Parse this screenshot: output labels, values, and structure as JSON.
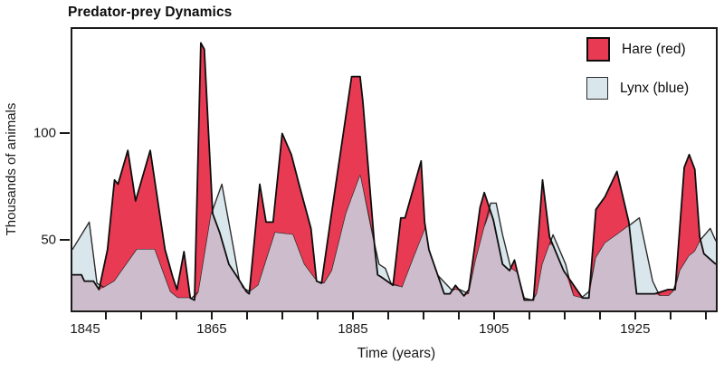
{
  "title": "Predator-prey Dynamics",
  "legend": {
    "hare_label": "Hare (red)",
    "lynx_label": "Lynx (blue)"
  },
  "axes": {
    "x_label": "Time (years)",
    "y_label": "Thousands of animals"
  },
  "colors": {
    "hare_fill": "#e83a52",
    "lynx_fill": "#d9e7ec",
    "overlap_fill": "#cdbccb",
    "hare_stroke": "#0d0d0d",
    "lynx_stroke": "#2b2b2b",
    "frame": "#1a1a1a"
  },
  "chart_data": {
    "type": "area",
    "title": "Predator-prey Dynamics",
    "xlabel": "Time (years)",
    "ylabel": "Thousands of animals",
    "x_window": [
      1845,
      1936.7
    ],
    "y_window": [
      16.1,
      149.6
    ],
    "x_tick_labels": [
      1845,
      1865,
      1885,
      1905,
      1925
    ],
    "x_minor_tick_interval": 5,
    "y_tick_labels": [
      50,
      100
    ],
    "grid": false,
    "legend_position": "top-right",
    "overlap_note": "Overlapping region of the two area series renders in mauve",
    "series": [
      {
        "name": "Hare (red)",
        "color": "#e83a52",
        "points": [
          [
            1845,
            33
          ],
          [
            1846.3,
            33
          ],
          [
            1846.7,
            30
          ],
          [
            1848,
            30
          ],
          [
            1848.8,
            26
          ],
          [
            1850,
            45
          ],
          [
            1851,
            78
          ],
          [
            1851.5,
            76
          ],
          [
            1852.9,
            92
          ],
          [
            1854,
            68
          ],
          [
            1856.1,
            92
          ],
          [
            1858.2,
            45
          ],
          [
            1859.3,
            32
          ],
          [
            1859.9,
            26
          ],
          [
            1860.9,
            44
          ],
          [
            1861.8,
            22
          ],
          [
            1862.4,
            21
          ],
          [
            1863.3,
            143
          ],
          [
            1863.8,
            140
          ],
          [
            1864.4,
            100
          ],
          [
            1865,
            62
          ],
          [
            1866,
            53
          ],
          [
            1867.3,
            38
          ],
          [
            1868.5,
            32
          ],
          [
            1869.8,
            25
          ],
          [
            1870.2,
            24
          ],
          [
            1871.7,
            76
          ],
          [
            1872.6,
            58
          ],
          [
            1873.6,
            58
          ],
          [
            1874.9,
            100
          ],
          [
            1876.2,
            90
          ],
          [
            1877.3,
            76
          ],
          [
            1879,
            55
          ],
          [
            1879.8,
            30
          ],
          [
            1880.5,
            29
          ],
          [
            1881.7,
            57
          ],
          [
            1884.8,
            127
          ],
          [
            1886,
            127
          ],
          [
            1886.4,
            115
          ],
          [
            1888.1,
            45
          ],
          [
            1888.5,
            33
          ],
          [
            1889,
            32
          ],
          [
            1890.7,
            28
          ],
          [
            1891.8,
            60
          ],
          [
            1892.4,
            60
          ],
          [
            1894.7,
            87
          ],
          [
            1895.2,
            58
          ],
          [
            1895.8,
            45
          ],
          [
            1898,
            24
          ],
          [
            1898.8,
            24
          ],
          [
            1899.6,
            28
          ],
          [
            1900.8,
            23
          ],
          [
            1901.5,
            26
          ],
          [
            1903.1,
            65
          ],
          [
            1903.7,
            72
          ],
          [
            1905,
            59
          ],
          [
            1906.3,
            38
          ],
          [
            1907.3,
            35
          ],
          [
            1908,
            40
          ],
          [
            1909.4,
            21
          ],
          [
            1910.7,
            21
          ],
          [
            1912,
            78
          ],
          [
            1913,
            51
          ],
          [
            1915,
            35
          ],
          [
            1917.7,
            22
          ],
          [
            1918.6,
            22
          ],
          [
            1919.6,
            64
          ],
          [
            1920.9,
            70
          ],
          [
            1922.6,
            82
          ],
          [
            1924.3,
            58
          ],
          [
            1925.4,
            24
          ],
          [
            1928,
            24
          ],
          [
            1929.9,
            26
          ],
          [
            1930.9,
            26
          ],
          [
            1932.2,
            84
          ],
          [
            1932.9,
            90
          ],
          [
            1933.7,
            83
          ],
          [
            1934.4,
            51
          ],
          [
            1935,
            43
          ],
          [
            1936.7,
            38
          ]
        ]
      },
      {
        "name": "Lynx (blue)",
        "color": "#d9e7ec",
        "points": [
          [
            1845,
            45
          ],
          [
            1847.4,
            58
          ],
          [
            1848.5,
            29
          ],
          [
            1849.5,
            27
          ],
          [
            1851,
            30
          ],
          [
            1854.2,
            45
          ],
          [
            1856.7,
            45
          ],
          [
            1858.9,
            25
          ],
          [
            1860,
            22
          ],
          [
            1862,
            22
          ],
          [
            1863,
            25
          ],
          [
            1864.8,
            62
          ],
          [
            1866.3,
            76
          ],
          [
            1868,
            45
          ],
          [
            1868.8,
            30
          ],
          [
            1869.2,
            27
          ],
          [
            1870.3,
            25
          ],
          [
            1871.5,
            28
          ],
          [
            1873.9,
            53
          ],
          [
            1876.4,
            52
          ],
          [
            1878,
            38
          ],
          [
            1879.8,
            30
          ],
          [
            1880.9,
            29
          ],
          [
            1882,
            35
          ],
          [
            1884,
            62
          ],
          [
            1886,
            80
          ],
          [
            1888.1,
            47
          ],
          [
            1888.7,
            38
          ],
          [
            1889.6,
            36
          ],
          [
            1890.4,
            29
          ],
          [
            1892,
            27
          ],
          [
            1893.5,
            40
          ],
          [
            1895.3,
            55
          ],
          [
            1895.8,
            45
          ],
          [
            1897,
            33
          ],
          [
            1899,
            26
          ],
          [
            1900.2,
            26
          ],
          [
            1901.5,
            24
          ],
          [
            1902.5,
            40
          ],
          [
            1904.6,
            67
          ],
          [
            1905.4,
            67
          ],
          [
            1906.3,
            52
          ],
          [
            1907.5,
            36
          ],
          [
            1908.4,
            34
          ],
          [
            1909.4,
            22
          ],
          [
            1910.5,
            21
          ],
          [
            1911.2,
            24
          ],
          [
            1912,
            38
          ],
          [
            1913.5,
            52
          ],
          [
            1915.3,
            38
          ],
          [
            1916.4,
            23
          ],
          [
            1917.5,
            22
          ],
          [
            1918.6,
            25
          ],
          [
            1919.6,
            41
          ],
          [
            1920.9,
            48
          ],
          [
            1923,
            53
          ],
          [
            1925.8,
            60
          ],
          [
            1927.7,
            30
          ],
          [
            1928.7,
            23
          ],
          [
            1930,
            23
          ],
          [
            1930.6,
            25
          ],
          [
            1931.6,
            35
          ],
          [
            1932.9,
            42
          ],
          [
            1933.7,
            44
          ],
          [
            1934.6,
            50
          ],
          [
            1935.9,
            55
          ],
          [
            1936.7,
            49
          ]
        ]
      }
    ]
  }
}
